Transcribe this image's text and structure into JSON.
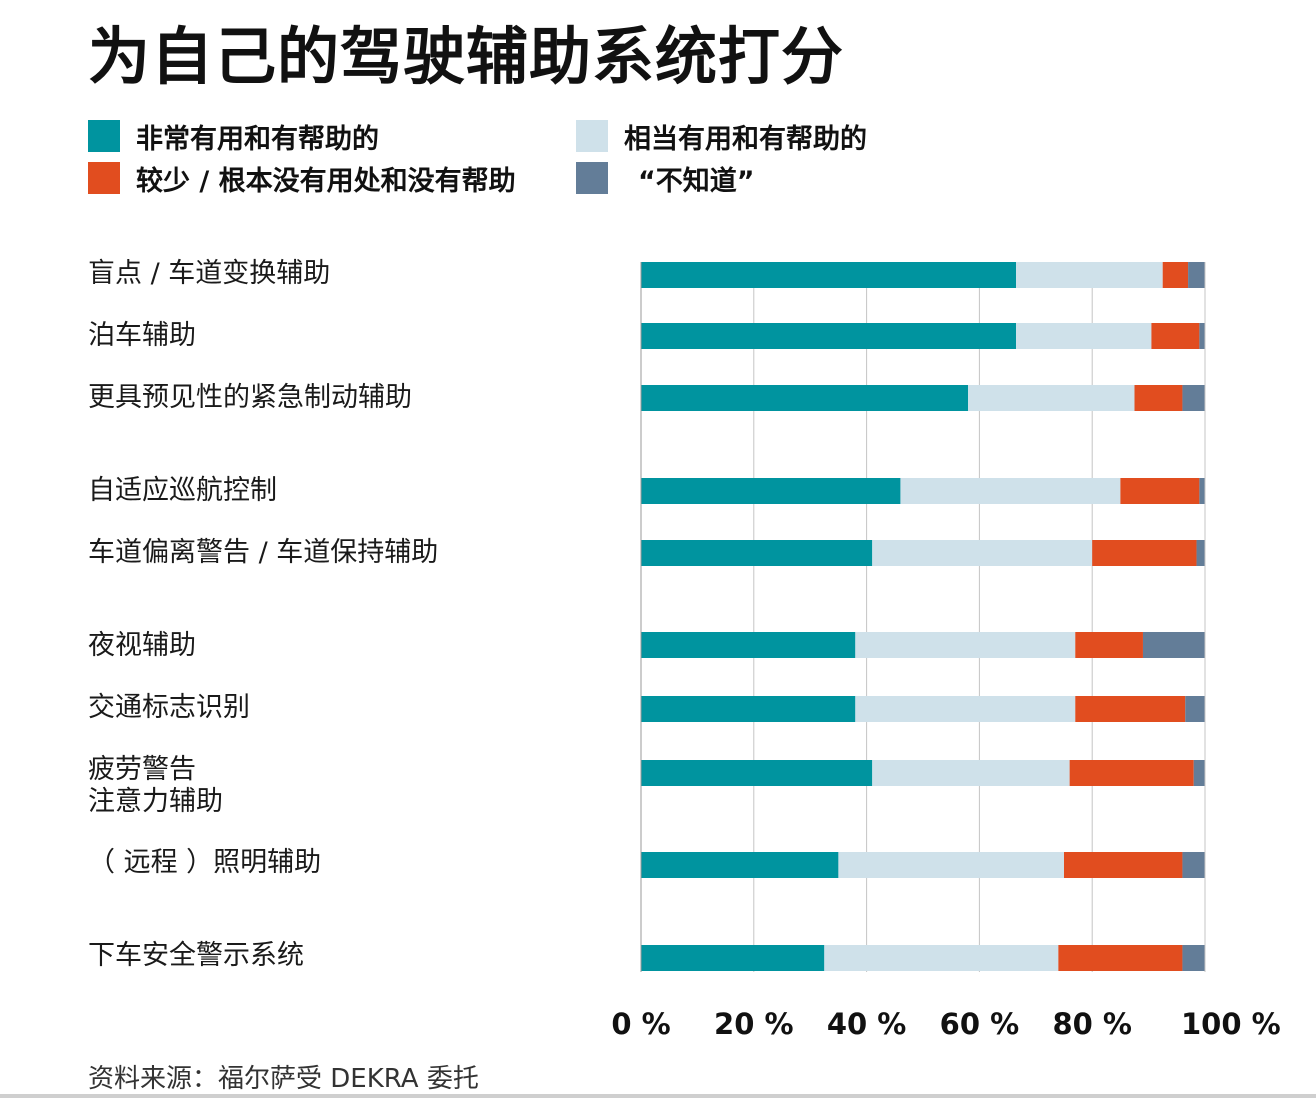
{
  "chart_data": {
    "type": "bar",
    "orientation": "horizontal",
    "stacked": true,
    "title": "为自己的驾驶辅助系统打分",
    "xlim": [
      0,
      100
    ],
    "ticks": [
      "0 %",
      "20 %",
      "40 %",
      "60 %",
      "80 %",
      "100 %"
    ],
    "tick_values": [
      0,
      20,
      40,
      60,
      80,
      100
    ],
    "grid": true,
    "legend": [
      {
        "name": "非常有用和有帮助的",
        "color": "#00949f"
      },
      {
        "name": "相当有用和有帮助的",
        "color": "#cfe1ea"
      },
      {
        "name": "较少 / 根本没有用处和没有帮助",
        "color": "#e14d1f"
      },
      {
        "name": "“不知道”",
        "color": "#637d98"
      }
    ],
    "categories": [
      "盲点 / 车道变换辅助",
      "泊车辅助",
      "更具预见性的紧急制动辅助",
      "自适应巡航控制",
      "车道偏离警告 / 车道保持辅助",
      "夜视辅助",
      "交通标志识别",
      "疲劳警告\n注意力辅助",
      "（ 远程 ）照明辅助",
      "下车安全警示系统"
    ],
    "series": [
      {
        "name": "非常有用和有帮助的",
        "values": [
          66.5,
          66.5,
          58,
          46,
          41,
          38,
          38,
          41,
          35,
          32.5
        ]
      },
      {
        "name": "相当有用和有帮助的",
        "values": [
          26,
          24,
          29.5,
          39,
          39,
          39,
          39,
          35,
          40,
          41.5
        ]
      },
      {
        "name": "较少 / 根本没有用处和没有帮助",
        "values": [
          4.5,
          8.5,
          8.5,
          14,
          18.5,
          12,
          19.5,
          22,
          21,
          22
        ]
      },
      {
        "name": "“不知道”",
        "values": [
          3,
          1,
          4,
          1,
          1.5,
          11,
          3.5,
          2,
          4,
          4
        ]
      }
    ]
  },
  "source": "资料来源：福尔萨受 DEKRA 委托"
}
